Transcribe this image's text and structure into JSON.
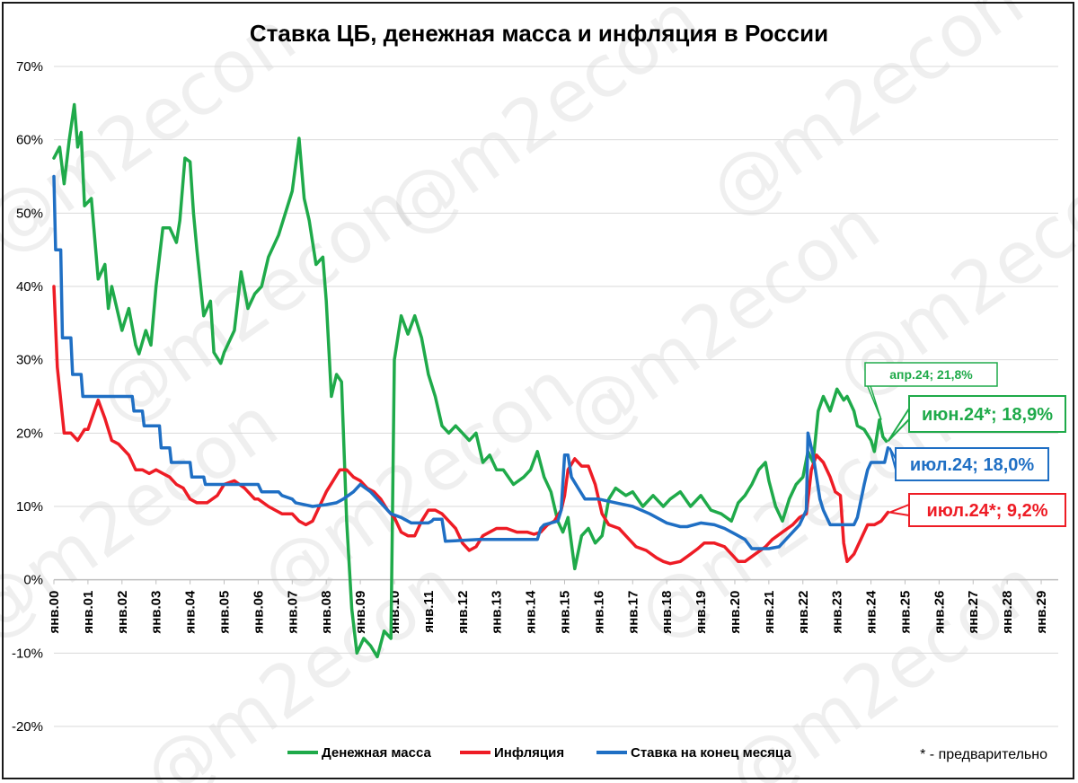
{
  "chart_data": {
    "type": "line",
    "title": "Ставка ЦБ, денежная масса и инфляция в России",
    "ylim": [
      -20,
      70
    ],
    "yticks": [
      -20,
      -10,
      0,
      10,
      20,
      30,
      40,
      50,
      60,
      70
    ],
    "ytick_labels": [
      "-20%",
      "-10%",
      "0%",
      "10%",
      "20%",
      "30%",
      "40%",
      "50%",
      "60%",
      "70%"
    ],
    "x_range": [
      2000,
      2029.5
    ],
    "xticks": [
      2000,
      2001,
      2002,
      2003,
      2004,
      2005,
      2006,
      2007,
      2008,
      2009,
      2010,
      2011,
      2012,
      2013,
      2014,
      2015,
      2016,
      2017,
      2018,
      2019,
      2020,
      2021,
      2022,
      2023,
      2024,
      2025,
      2026,
      2027,
      2028,
      2029
    ],
    "xtick_labels": [
      "янв.00",
      "янв.01",
      "янв.02",
      "янв.03",
      "янв.04",
      "янв.05",
      "янв.06",
      "янв.07",
      "янв.08",
      "янв.09",
      "янв.10",
      "янв.11",
      "янв.12",
      "янв.13",
      "янв.14",
      "янв.15",
      "янв.16",
      "янв.17",
      "янв.18",
      "янв.19",
      "янв.20",
      "янв.21",
      "янв.22",
      "янв.23",
      "янв.24",
      "янв.25",
      "янв.26",
      "янв.27",
      "янв.28",
      "янв.29"
    ],
    "grid": "horizontal",
    "legend_position": "bottom",
    "series": [
      {
        "name": "Денежная масса",
        "color": "#1faa4a",
        "x": [
          2000.0,
          2000.17,
          2000.3,
          2000.45,
          2000.6,
          2000.7,
          2000.8,
          2000.9,
          2001.1,
          2001.3,
          2001.5,
          2001.6,
          2001.7,
          2001.9,
          2002.0,
          2002.2,
          2002.4,
          2002.5,
          2002.7,
          2002.85,
          2003.0,
          2003.2,
          2003.4,
          2003.6,
          2003.7,
          2003.85,
          2004.0,
          2004.1,
          2004.2,
          2004.4,
          2004.6,
          2004.7,
          2004.9,
          2005.0,
          2005.3,
          2005.5,
          2005.7,
          2005.9,
          2006.1,
          2006.3,
          2006.6,
          2006.8,
          2007.0,
          2007.2,
          2007.35,
          2007.5,
          2007.7,
          2007.9,
          2008.0,
          2008.15,
          2008.3,
          2008.45,
          2008.6,
          2008.75,
          2008.9,
          2009.1,
          2009.3,
          2009.5,
          2009.7,
          2009.9,
          2010.0,
          2010.2,
          2010.4,
          2010.6,
          2010.8,
          2011.0,
          2011.2,
          2011.4,
          2011.6,
          2011.8,
          2012.0,
          2012.2,
          2012.4,
          2012.6,
          2012.8,
          2013.0,
          2013.2,
          2013.5,
          2013.8,
          2014.0,
          2014.2,
          2014.4,
          2014.6,
          2014.8,
          2014.95,
          2015.1,
          2015.3,
          2015.5,
          2015.7,
          2015.9,
          2016.1,
          2016.3,
          2016.5,
          2016.8,
          2017.0,
          2017.3,
          2017.6,
          2017.9,
          2018.1,
          2018.4,
          2018.7,
          2019.0,
          2019.3,
          2019.6,
          2019.9,
          2020.1,
          2020.3,
          2020.5,
          2020.7,
          2020.9,
          2021.0,
          2021.2,
          2021.4,
          2021.6,
          2021.8,
          2022.0,
          2022.15,
          2022.3,
          2022.45,
          2022.6,
          2022.8,
          2023.0,
          2023.2,
          2023.3,
          2023.5,
          2023.6,
          2023.8,
          2024.0,
          2024.1,
          2024.25,
          2024.35,
          2024.45
        ],
        "values": [
          57.5,
          59.0,
          54.0,
          60.0,
          64.8,
          59.0,
          61.0,
          51.0,
          52.0,
          41.0,
          43.0,
          37.0,
          40.0,
          36.0,
          34.0,
          37.0,
          32.0,
          30.8,
          34.0,
          32.0,
          40.0,
          48.0,
          48.0,
          46.0,
          49.0,
          57.5,
          57.0,
          50.0,
          45.0,
          36.0,
          38.0,
          31.0,
          29.5,
          31.0,
          34.0,
          42.0,
          37.0,
          39.0,
          40.0,
          44.0,
          47.0,
          50.0,
          53.0,
          60.2,
          52.0,
          49.0,
          43.0,
          44.0,
          38.0,
          25.0,
          28.0,
          27.0,
          8.0,
          -4.0,
          -10.0,
          -8.0,
          -9.0,
          -10.5,
          -7.0,
          -8.0,
          30.0,
          36.0,
          33.5,
          36.0,
          33.0,
          28.0,
          25.0,
          21.0,
          20.0,
          21.0,
          20.0,
          19.0,
          20.0,
          16.0,
          17.0,
          15.0,
          15.0,
          13.0,
          14.0,
          15.0,
          17.5,
          14.0,
          12.0,
          8.0,
          6.5,
          8.5,
          1.5,
          6.0,
          7.0,
          5.0,
          6.0,
          11.0,
          12.5,
          11.5,
          12.0,
          10.0,
          11.5,
          10.0,
          11.0,
          12.0,
          10.0,
          11.5,
          9.5,
          9.0,
          8.0,
          10.5,
          11.5,
          13.0,
          15.0,
          16.0,
          13.5,
          10.0,
          8.0,
          11.0,
          13.0,
          14.0,
          17.5,
          16.0,
          23.0,
          25.0,
          23.0,
          26.0,
          24.5,
          25.0,
          23.0,
          21.0,
          20.5,
          19.0,
          17.5,
          21.8,
          19.5,
          18.9
        ]
      },
      {
        "name": "Инфляция",
        "color": "#ee1c25",
        "x": [
          2000.0,
          2000.1,
          2000.3,
          2000.5,
          2000.7,
          2000.9,
          2001.0,
          2001.15,
          2001.3,
          2001.5,
          2001.7,
          2001.9,
          2002.0,
          2002.2,
          2002.4,
          2002.6,
          2002.8,
          2003.0,
          2003.2,
          2003.4,
          2003.6,
          2003.8,
          2004.0,
          2004.2,
          2004.5,
          2004.8,
          2005.0,
          2005.3,
          2005.6,
          2005.9,
          2006.0,
          2006.3,
          2006.5,
          2006.7,
          2007.0,
          2007.2,
          2007.4,
          2007.6,
          2007.8,
          2008.0,
          2008.2,
          2008.4,
          2008.6,
          2008.8,
          2009.0,
          2009.2,
          2009.4,
          2009.6,
          2009.8,
          2010.0,
          2010.2,
          2010.4,
          2010.6,
          2010.8,
          2011.0,
          2011.2,
          2011.4,
          2011.6,
          2011.8,
          2012.0,
          2012.2,
          2012.4,
          2012.6,
          2012.8,
          2013.0,
          2013.3,
          2013.6,
          2013.9,
          2014.1,
          2014.3,
          2014.5,
          2014.7,
          2014.9,
          2015.0,
          2015.1,
          2015.3,
          2015.5,
          2015.7,
          2015.9,
          2016.1,
          2016.3,
          2016.6,
          2016.9,
          2017.1,
          2017.4,
          2017.7,
          2017.9,
          2018.1,
          2018.4,
          2018.7,
          2018.9,
          2019.1,
          2019.4,
          2019.7,
          2019.9,
          2020.1,
          2020.3,
          2020.6,
          2020.9,
          2021.1,
          2021.4,
          2021.7,
          2021.9,
          2022.1,
          2022.25,
          2022.4,
          2022.6,
          2022.8,
          2022.95,
          2023.1,
          2023.2,
          2023.3,
          2023.5,
          2023.7,
          2023.9,
          2024.1,
          2024.3,
          2024.5
        ],
        "values": [
          40.0,
          29.0,
          20.0,
          20.0,
          19.0,
          20.5,
          20.5,
          22.5,
          24.5,
          22.0,
          19.0,
          18.5,
          18.0,
          17.0,
          15.0,
          15.0,
          14.5,
          15.0,
          14.5,
          14.0,
          13.0,
          12.5,
          11.0,
          10.5,
          10.5,
          11.5,
          13.0,
          13.5,
          12.5,
          11.0,
          11.0,
          10.0,
          9.5,
          9.0,
          9.0,
          8.0,
          7.5,
          8.0,
          10.0,
          12.0,
          13.5,
          15.0,
          15.0,
          14.0,
          13.5,
          12.5,
          12.0,
          11.0,
          9.5,
          8.5,
          6.5,
          6.0,
          6.0,
          8.0,
          9.5,
          9.5,
          9.0,
          8.0,
          7.0,
          5.0,
          4.0,
          4.5,
          6.0,
          6.5,
          7.0,
          7.0,
          6.5,
          6.5,
          6.2,
          6.5,
          7.5,
          8.0,
          9.5,
          11.5,
          15.0,
          16.5,
          15.5,
          15.5,
          13.0,
          9.0,
          7.5,
          7.0,
          5.5,
          4.5,
          4.0,
          3.0,
          2.5,
          2.2,
          2.5,
          3.5,
          4.2,
          5.0,
          5.0,
          4.5,
          3.5,
          2.5,
          2.5,
          3.5,
          4.5,
          5.5,
          6.5,
          7.5,
          8.5,
          9.0,
          15.0,
          17.0,
          16.0,
          14.0,
          12.0,
          11.5,
          5.0,
          2.5,
          3.5,
          5.5,
          7.5,
          7.5,
          8.0,
          9.2
        ]
      },
      {
        "name": "Ставка на конец месяца",
        "color": "#1f6fc4",
        "x": [
          2000.0,
          2000.05,
          2000.1,
          2000.2,
          2000.25,
          2000.5,
          2000.55,
          2000.8,
          2000.85,
          2002.3,
          2002.35,
          2002.6,
          2002.65,
          2003.1,
          2003.15,
          2003.4,
          2003.45,
          2004.0,
          2004.05,
          2004.4,
          2004.45,
          2006.0,
          2006.1,
          2006.6,
          2006.7,
          2007.0,
          2007.1,
          2007.6,
          2008.0,
          2008.3,
          2008.5,
          2008.8,
          2009.0,
          2009.3,
          2009.5,
          2009.7,
          2009.9,
          2010.2,
          2010.5,
          2011.0,
          2011.1,
          2011.15,
          2011.4,
          2011.5,
          2012.5,
          2013.0,
          2013.5,
          2014.0,
          2014.2,
          2014.3,
          2014.4,
          2014.8,
          2014.9,
          2015.0,
          2015.1,
          2015.2,
          2015.4,
          2015.6,
          2015.8,
          2016.0,
          2016.5,
          2017.0,
          2017.5,
          2018.0,
          2018.4,
          2018.6,
          2019.0,
          2019.4,
          2019.7,
          2020.0,
          2020.3,
          2020.5,
          2021.0,
          2021.3,
          2021.6,
          2021.9,
          2022.0,
          2022.1,
          2022.15,
          2022.3,
          2022.5,
          2022.6,
          2022.8,
          2023.0,
          2023.5,
          2023.6,
          2023.8,
          2023.9,
          2024.0,
          2024.3,
          2024.4,
          2024.5
        ],
        "values": [
          55.0,
          45.0,
          45.0,
          45.0,
          33.0,
          33.0,
          28.0,
          28.0,
          25.0,
          25.0,
          23.0,
          23.0,
          21.0,
          21.0,
          18.0,
          18.0,
          16.0,
          16.0,
          14.0,
          14.0,
          13.0,
          13.0,
          12.0,
          12.0,
          11.5,
          11.0,
          10.5,
          10.0,
          10.25,
          10.5,
          11.0,
          12.0,
          13.0,
          12.0,
          11.0,
          10.0,
          9.0,
          8.5,
          7.75,
          7.75,
          8.0,
          8.25,
          8.25,
          5.25,
          5.5,
          5.5,
          5.5,
          5.5,
          5.5,
          7.0,
          7.5,
          8.0,
          9.5,
          17.0,
          17.0,
          14.0,
          12.5,
          11.0,
          11.0,
          11.0,
          10.5,
          10.0,
          9.0,
          7.75,
          7.25,
          7.25,
          7.75,
          7.5,
          7.0,
          6.25,
          5.5,
          4.25,
          4.25,
          4.5,
          6.0,
          7.5,
          8.5,
          9.5,
          20.0,
          17.0,
          11.0,
          9.5,
          7.5,
          7.5,
          7.5,
          8.5,
          13.0,
          15.0,
          16.0,
          16.0,
          16.0,
          18.0
        ]
      }
    ],
    "annotations": [
      {
        "text": "апр.24; 21,8%",
        "series": "Денежная масса",
        "x": 2024.25,
        "y": 21.8,
        "color": "#1faa4a"
      },
      {
        "text": "июн.24*; 18,9%",
        "series": "Денежная масса",
        "x": 2024.45,
        "y": 18.9,
        "color": "#1faa4a"
      },
      {
        "text": "июл.24; 18,0%",
        "series": "Ставка на конец месяца",
        "x": 2024.5,
        "y": 18.0,
        "color": "#1f6fc4"
      },
      {
        "text": "июл.24*; 9,2%",
        "series": "Инфляция",
        "x": 2024.5,
        "y": 9.2,
        "color": "#ee1c25"
      }
    ],
    "footnote": "* - предварительно",
    "watermark": "@m2econ"
  }
}
